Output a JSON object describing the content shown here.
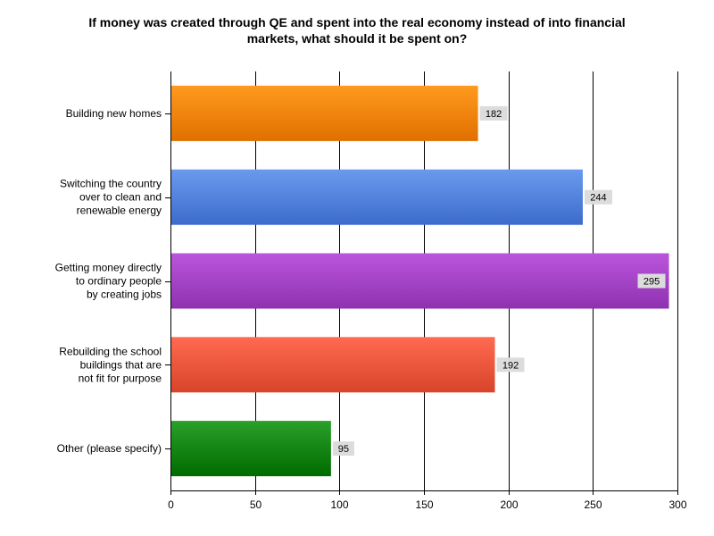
{
  "chart_data": {
    "type": "bar",
    "orientation": "horizontal",
    "title_lines": [
      "If money was created through QE and spent into the real economy instead of into financial",
      "markets, what should it be spent on?"
    ],
    "categories": [
      [
        "Building new homes"
      ],
      [
        "Switching the country",
        "over to clean and",
        "renewable energy"
      ],
      [
        "Getting money directly",
        "to ordinary people",
        "by creating jobs"
      ],
      [
        "Rebuilding the school",
        "buildings that are",
        "not fit for purpose"
      ],
      [
        "Other (please specify)"
      ]
    ],
    "values": [
      182,
      244,
      295,
      192,
      95
    ],
    "xlim": [
      0,
      300
    ],
    "xticks": [
      "0",
      "50",
      "100",
      "150",
      "200",
      "250",
      "300"
    ],
    "grid": true,
    "bar_colors": [
      [
        "#ff9a1e",
        "#e07000"
      ],
      [
        "#6a9aee",
        "#3c6ccc"
      ],
      [
        "#bb55dd",
        "#8e32b0"
      ],
      [
        "#ff6a50",
        "#d8442a"
      ],
      [
        "#2aa02a",
        "#006b00"
      ]
    ]
  }
}
